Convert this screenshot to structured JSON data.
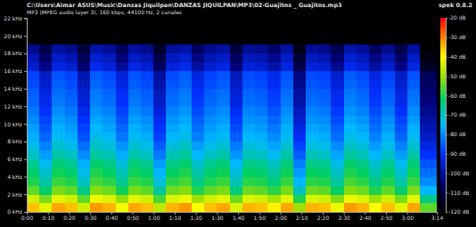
{
  "chart_data": {
    "type": "heatmap",
    "title": "C:\\Users\\Aimar ASUS\\Music\\Danzas Jiquilpan\\DANZAS JIQUILPAN\\MP3\\02-Guajitos _ Guajitos.mp3",
    "subtitle": "MP3 (MPEG audio layer 3), 160 kbps, 44100 Hz, 2 canales",
    "annotations": [
      "spek 0.8.2"
    ],
    "xlim": [
      0,
      194
    ],
    "xticks": [
      {
        "value": 0,
        "label": "0:00"
      },
      {
        "value": 10,
        "label": "0:10"
      },
      {
        "value": 20,
        "label": "0:20"
      },
      {
        "value": 30,
        "label": "0:30"
      },
      {
        "value": 40,
        "label": "0:40"
      },
      {
        "value": 50,
        "label": "0:50"
      },
      {
        "value": 60,
        "label": "1:00"
      },
      {
        "value": 70,
        "label": "1:10"
      },
      {
        "value": 80,
        "label": "1:20"
      },
      {
        "value": 90,
        "label": "1:30"
      },
      {
        "value": 100,
        "label": "1:40"
      },
      {
        "value": 110,
        "label": "1:50"
      },
      {
        "value": 120,
        "label": "2:00"
      },
      {
        "value": 130,
        "label": "2:10"
      },
      {
        "value": 140,
        "label": "2:20"
      },
      {
        "value": 150,
        "label": "2:30"
      },
      {
        "value": 160,
        "label": "2:40"
      },
      {
        "value": 170,
        "label": "2:50"
      },
      {
        "value": 180,
        "label": "3:00"
      },
      {
        "value": 194,
        "label": "3:14"
      }
    ],
    "ylim": [
      0,
      22.05
    ],
    "yticks": [
      {
        "value": 0,
        "label": "0 kHz"
      },
      {
        "value": 2,
        "label": "2 kHz"
      },
      {
        "value": 4,
        "label": "4 kHz"
      },
      {
        "value": 6,
        "label": "6 kHz"
      },
      {
        "value": 8,
        "label": "8 kHz"
      },
      {
        "value": 10,
        "label": "10 kHz"
      },
      {
        "value": 12,
        "label": "12 kHz"
      },
      {
        "value": 14,
        "label": "14 kHz"
      },
      {
        "value": 16,
        "label": "16 kHz"
      },
      {
        "value": 18,
        "label": "18 kHz"
      },
      {
        "value": 20,
        "label": "20 kHz"
      },
      {
        "value": 22,
        "label": "22 kHz"
      }
    ],
    "colorbar": {
      "range": [
        -120,
        -20
      ],
      "ticks": [
        {
          "value": -20,
          "label": "-20 dB"
        },
        {
          "value": -30,
          "label": "-30 dB"
        },
        {
          "value": -40,
          "label": "-40 dB"
        },
        {
          "value": -50,
          "label": "-50 dB"
        },
        {
          "value": -60,
          "label": "-60 dB"
        },
        {
          "value": -70,
          "label": "-70 dB"
        },
        {
          "value": -80,
          "label": "-80 dB"
        },
        {
          "value": -90,
          "label": "-90 dB"
        },
        {
          "value": -100,
          "label": "-100 dB"
        },
        {
          "value": -110,
          "label": "-110 dB"
        },
        {
          "value": -120,
          "label": "-120 dB"
        }
      ]
    },
    "x_bins": [
      0,
      6,
      12,
      18,
      24,
      30,
      36,
      42,
      48,
      54,
      60,
      66,
      72,
      78,
      84,
      90,
      96,
      102,
      108,
      114,
      120,
      126,
      132,
      138,
      144,
      150,
      156,
      162,
      168,
      174,
      180,
      186,
      194
    ],
    "y_bins": [
      0,
      1,
      2,
      3,
      4,
      5,
      6,
      7,
      8,
      9,
      10,
      11,
      12,
      13,
      14,
      15,
      16,
      17,
      18,
      19,
      20,
      21,
      22.05
    ],
    "cells": [
      [
        -35,
        -43,
        -33,
        -35,
        -45,
        -32,
        -34,
        -41,
        -33,
        -35,
        -47,
        -34,
        -32,
        -40,
        -35,
        -33,
        -44,
        -34,
        -35,
        -39,
        -33,
        -50,
        -34,
        -35,
        -42,
        -32,
        -34,
        -40,
        -35,
        -43,
        -33,
        -55
      ],
      [
        -45,
        -53,
        -43,
        -45,
        -55,
        -42,
        -44,
        -51,
        -43,
        -45,
        -57,
        -44,
        -42,
        -50,
        -45,
        -43,
        -54,
        -44,
        -45,
        -49,
        -43,
        -60,
        -44,
        -45,
        -52,
        -42,
        -44,
        -50,
        -45,
        -53,
        -43,
        -65
      ],
      [
        -55,
        -63,
        -53,
        -55,
        -65,
        -52,
        -54,
        -61,
        -53,
        -55,
        -67,
        -54,
        -52,
        -60,
        -55,
        -53,
        -64,
        -54,
        -55,
        -59,
        -53,
        -70,
        -54,
        -55,
        -62,
        -52,
        -54,
        -60,
        -55,
        -63,
        -53,
        -75
      ],
      [
        -60,
        -68,
        -58,
        -60,
        -70,
        -57,
        -59,
        -66,
        -58,
        -60,
        -72,
        -59,
        -57,
        -65,
        -60,
        -58,
        -69,
        -59,
        -60,
        -64,
        -58,
        -75,
        -59,
        -60,
        -67,
        -57,
        -59,
        -65,
        -60,
        -68,
        -58,
        -80
      ],
      [
        -63,
        -71,
        -61,
        -63,
        -73,
        -60,
        -62,
        -69,
        -61,
        -63,
        -75,
        -62,
        -60,
        -68,
        -63,
        -61,
        -72,
        -62,
        -63,
        -67,
        -61,
        -78,
        -62,
        -63,
        -70,
        -60,
        -62,
        -68,
        -63,
        -71,
        -61,
        -83
      ],
      [
        -66,
        -74,
        -64,
        -66,
        -76,
        -63,
        -65,
        -72,
        -64,
        -66,
        -78,
        -65,
        -63,
        -71,
        -66,
        -64,
        -75,
        -65,
        -66,
        -70,
        -64,
        -81,
        -65,
        -66,
        -73,
        -63,
        -65,
        -71,
        -66,
        -74,
        -64,
        -86
      ],
      [
        -70,
        -78,
        -68,
        -70,
        -80,
        -67,
        -69,
        -76,
        -68,
        -70,
        -82,
        -69,
        -67,
        -75,
        -70,
        -68,
        -79,
        -69,
        -70,
        -74,
        -68,
        -85,
        -69,
        -70,
        -77,
        -67,
        -69,
        -75,
        -70,
        -78,
        -68,
        -90
      ],
      [
        -73,
        -81,
        -71,
        -73,
        -83,
        -70,
        -72,
        -79,
        -71,
        -73,
        -85,
        -72,
        -70,
        -78,
        -73,
        -71,
        -82,
        -72,
        -73,
        -77,
        -71,
        -88,
        -72,
        -73,
        -80,
        -70,
        -72,
        -78,
        -73,
        -81,
        -71,
        -93
      ],
      [
        -76,
        -84,
        -74,
        -76,
        -86,
        -73,
        -75,
        -82,
        -74,
        -76,
        -88,
        -75,
        -73,
        -81,
        -76,
        -74,
        -85,
        -75,
        -76,
        -80,
        -74,
        -91,
        -75,
        -76,
        -83,
        -73,
        -75,
        -81,
        -76,
        -84,
        -74,
        -96
      ],
      [
        -78,
        -86,
        -76,
        -78,
        -88,
        -75,
        -77,
        -84,
        -76,
        -78,
        -90,
        -77,
        -75,
        -83,
        -78,
        -76,
        -87,
        -77,
        -78,
        -82,
        -76,
        -93,
        -77,
        -78,
        -85,
        -75,
        -77,
        -83,
        -78,
        -86,
        -76,
        -98
      ],
      [
        -80,
        -88,
        -78,
        -80,
        -90,
        -77,
        -79,
        -86,
        -78,
        -80,
        -92,
        -79,
        -77,
        -85,
        -80,
        -78,
        -89,
        -79,
        -80,
        -84,
        -78,
        -95,
        -79,
        -80,
        -87,
        -77,
        -79,
        -85,
        -80,
        -88,
        -78,
        -100
      ],
      [
        -82,
        -90,
        -80,
        -82,
        -92,
        -79,
        -81,
        -88,
        -80,
        -82,
        -94,
        -81,
        -79,
        -87,
        -82,
        -80,
        -91,
        -81,
        -82,
        -86,
        -80,
        -97,
        -81,
        -82,
        -89,
        -79,
        -81,
        -87,
        -82,
        -90,
        -80,
        -102
      ],
      [
        -84,
        -92,
        -82,
        -84,
        -94,
        -81,
        -83,
        -90,
        -82,
        -84,
        -96,
        -83,
        -81,
        -89,
        -84,
        -82,
        -93,
        -83,
        -84,
        -88,
        -82,
        -99,
        -83,
        -84,
        -91,
        -81,
        -83,
        -89,
        -84,
        -92,
        -82,
        -104
      ],
      [
        -85,
        -93,
        -83,
        -85,
        -95,
        -82,
        -84,
        -91,
        -83,
        -85,
        -97,
        -84,
        -82,
        -90,
        -85,
        -83,
        -94,
        -84,
        -85,
        -89,
        -83,
        -100,
        -84,
        -85,
        -92,
        -82,
        -84,
        -90,
        -85,
        -93,
        -83,
        -105
      ],
      [
        -87,
        -95,
        -85,
        -87,
        -97,
        -84,
        -86,
        -93,
        -85,
        -87,
        -99,
        -86,
        -84,
        -92,
        -87,
        -85,
        -96,
        -86,
        -87,
        -91,
        -85,
        -102,
        -86,
        -87,
        -94,
        -84,
        -86,
        -92,
        -87,
        -95,
        -85,
        -107
      ],
      [
        -88,
        -96,
        -86,
        -88,
        -98,
        -85,
        -87,
        -94,
        -86,
        -88,
        -100,
        -87,
        -85,
        -93,
        -88,
        -86,
        -97,
        -87,
        -88,
        -92,
        -86,
        -103,
        -87,
        -88,
        -95,
        -85,
        -87,
        -93,
        -88,
        -96,
        -86,
        -108
      ],
      [
        -95,
        -103,
        -93,
        -95,
        -105,
        -92,
        -94,
        -101,
        -93,
        -95,
        -107,
        -94,
        -92,
        -100,
        -95,
        -93,
        -104,
        -94,
        -95,
        -99,
        -93,
        -110,
        -94,
        -95,
        -102,
        -92,
        -94,
        -100,
        -95,
        -103,
        -93,
        -115
      ],
      [
        -98,
        -106,
        -96,
        -98,
        -108,
        -95,
        -97,
        -104,
        -96,
        -98,
        -110,
        -97,
        -95,
        -103,
        -98,
        -96,
        -107,
        -97,
        -98,
        -102,
        -96,
        -113,
        -97,
        -98,
        -105,
        -95,
        -97,
        -103,
        -98,
        -106,
        -96,
        -118
      ],
      [
        -102,
        -110,
        -100,
        -102,
        -112,
        -99,
        -101,
        -108,
        -100,
        -102,
        -114,
        -101,
        -99,
        -107,
        -102,
        -100,
        -111,
        -101,
        -102,
        -106,
        -100,
        -117,
        -101,
        -102,
        -109,
        -99,
        -101,
        -107,
        -102,
        -110,
        -100,
        -120
      ],
      [
        -120,
        -120,
        -120,
        -120,
        -120,
        -120,
        -120,
        -120,
        -120,
        -120,
        -120,
        -120,
        -120,
        -120,
        -120,
        -120,
        -120,
        -120,
        -120,
        -120,
        -120,
        -120,
        -120,
        -120,
        -120,
        -120,
        -120,
        -120,
        -120,
        -120,
        -120,
        -120
      ],
      [
        -120,
        -120,
        -120,
        -120,
        -120,
        -120,
        -120,
        -120,
        -120,
        -120,
        -120,
        -120,
        -120,
        -120,
        -120,
        -120,
        -120,
        -120,
        -120,
        -120,
        -120,
        -120,
        -120,
        -120,
        -120,
        -120,
        -120,
        -120,
        -120,
        -120,
        -120,
        -120
      ],
      [
        -120,
        -120,
        -120,
        -120,
        -120,
        -120,
        -120,
        -120,
        -120,
        -120,
        -120,
        -120,
        -120,
        -120,
        -120,
        -120,
        -120,
        -120,
        -120,
        -120,
        -120,
        -120,
        -120,
        -120,
        -120,
        -120,
        -120,
        -120,
        -120,
        -120,
        -120,
        -120
      ]
    ]
  }
}
